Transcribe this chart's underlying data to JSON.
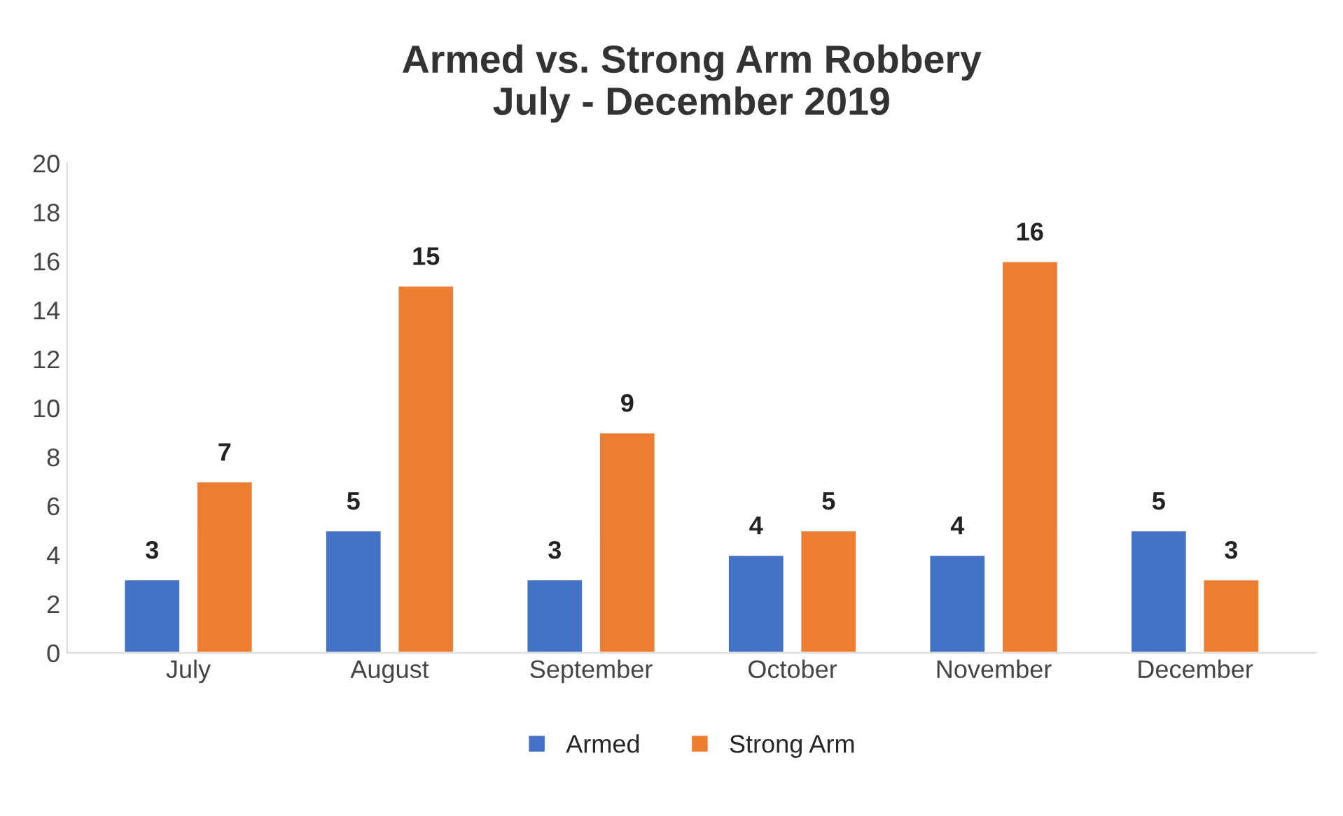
{
  "chart_data": {
    "type": "bar",
    "title": "Armed vs. Strong Arm Robbery\nJuly - December 2019",
    "categories": [
      "July",
      "August",
      "September",
      "October",
      "November",
      "December"
    ],
    "series": [
      {
        "name": "Armed",
        "color": "#4472c4",
        "values": [
          3,
          5,
          3,
          4,
          4,
          5
        ]
      },
      {
        "name": "Strong Arm",
        "color": "#ed7d31",
        "values": [
          7,
          15,
          9,
          5,
          16,
          3
        ]
      }
    ],
    "ylim": [
      0,
      20
    ],
    "yticks": [
      0,
      2,
      4,
      6,
      8,
      10,
      12,
      14,
      16,
      18,
      20
    ],
    "data_labels": true,
    "grid": false,
    "legend": "bottom"
  }
}
